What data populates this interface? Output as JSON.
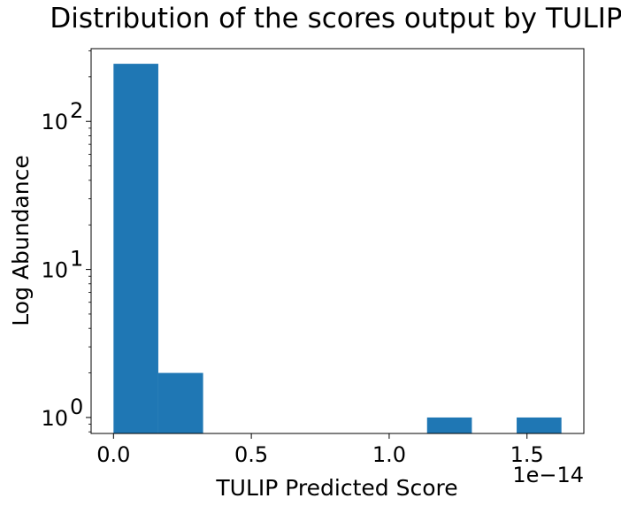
{
  "chart_data": {
    "type": "bar",
    "title": "Distribution of the scores output by TULIP",
    "xlabel": "TULIP Predicted Score",
    "ylabel": "Log Abundance",
    "yscale": "log",
    "x_offset_label": "1e−14",
    "bins": [
      {
        "start": 0.0,
        "end": 0.1625,
        "count": 245
      },
      {
        "start": 0.1625,
        "end": 0.325,
        "count": 2
      },
      {
        "start": 0.325,
        "end": 0.4875,
        "count": 0
      },
      {
        "start": 0.4875,
        "end": 0.65,
        "count": 0
      },
      {
        "start": 0.65,
        "end": 0.8125,
        "count": 0
      },
      {
        "start": 0.8125,
        "end": 0.975,
        "count": 0
      },
      {
        "start": 0.975,
        "end": 1.1375,
        "count": 0
      },
      {
        "start": 1.1375,
        "end": 1.3,
        "count": 1
      },
      {
        "start": 1.3,
        "end": 1.4625,
        "count": 0
      },
      {
        "start": 1.4625,
        "end": 1.625,
        "count": 1
      }
    ],
    "xlim": [
      -0.08125,
      1.70625
    ],
    "ylim": [
      0.78,
      310
    ],
    "xticks": [
      {
        "value": 0.0,
        "label": "0.0"
      },
      {
        "value": 0.5,
        "label": "0.5"
      },
      {
        "value": 1.0,
        "label": "1.0"
      },
      {
        "value": 1.5,
        "label": "1.5"
      }
    ],
    "yticks": [
      {
        "value": 1,
        "base": "10",
        "exp": "0"
      },
      {
        "value": 10,
        "base": "10",
        "exp": "1"
      },
      {
        "value": 100,
        "base": "10",
        "exp": "2"
      }
    ],
    "bar_color": "#1f77b4",
    "grid": false
  }
}
